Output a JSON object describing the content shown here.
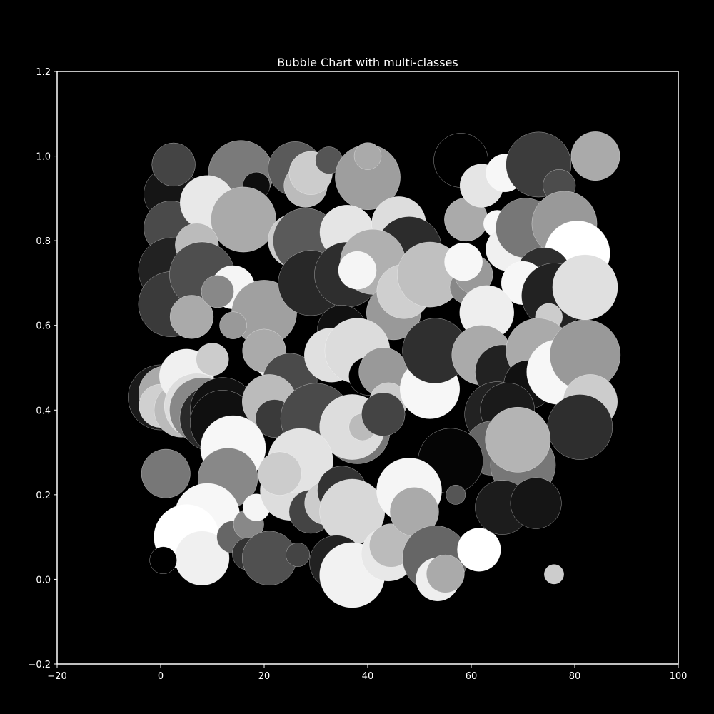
{
  "colors": {
    "background": "#000000",
    "axes_frame": "#ffffff",
    "text": "#ffffff",
    "bubble_edge": "#ffffff"
  },
  "chart_data": {
    "type": "scatter",
    "subtype": "bubble",
    "title": "Bubble Chart with multi-classes",
    "xlabel": "",
    "ylabel": "",
    "xlim": [
      -20,
      100
    ],
    "ylim": [
      -0.2,
      1.2
    ],
    "xticks": [
      -20,
      0,
      20,
      40,
      60,
      80,
      100
    ],
    "yticks": [
      -0.2,
      0.0,
      0.2,
      0.4,
      0.6,
      0.8,
      1.0,
      1.2
    ],
    "xtick_labels": [
      "−20",
      "0",
      "20",
      "40",
      "60",
      "80",
      "100"
    ],
    "ytick_labels": [
      "−0.2",
      "0.0",
      "0.2",
      "0.4",
      "0.6",
      "0.8",
      "1.0",
      "1.2"
    ],
    "grid": false,
    "legend": "none",
    "size_unit": "relative size",
    "points": [
      {
        "x": 2,
        "y": 0.91,
        "size": 5,
        "color": "#151515"
      },
      {
        "x": 2,
        "y": 0.83,
        "size": 5,
        "color": "#4a4a4a"
      },
      {
        "x": 2,
        "y": 0.73,
        "size": 6,
        "color": "#222222"
      },
      {
        "x": 2,
        "y": 0.65,
        "size": 6,
        "color": "#3a3a3a"
      },
      {
        "x": 0,
        "y": 0.43,
        "size": 6,
        "color": "#1a1a1a"
      },
      {
        "x": 1,
        "y": 0.44,
        "size": 5,
        "color": "#aaaaaa"
      },
      {
        "x": 0,
        "y": 0.41,
        "size": 4,
        "color": "#d0d0d0"
      },
      {
        "x": 4,
        "y": 0.4,
        "size": 5,
        "color": "#bbbbbb"
      },
      {
        "x": 5,
        "y": 0.48,
        "size": 5,
        "color": "#f0f0f0"
      },
      {
        "x": 7,
        "y": 0.41,
        "size": 6,
        "color": "#dddddd"
      },
      {
        "x": 8,
        "y": 0.4,
        "size": 6,
        "color": "#888888"
      },
      {
        "x": 10,
        "y": 0.38,
        "size": 6,
        "color": "#2a2a2a"
      },
      {
        "x": 12,
        "y": 0.4,
        "size": 6,
        "color": "#111111"
      },
      {
        "x": 12,
        "y": 0.37,
        "size": 6,
        "color": "#101010"
      },
      {
        "x": 2.5,
        "y": 0.98,
        "size": 4,
        "color": "#444444"
      },
      {
        "x": 15.5,
        "y": 0.96,
        "size": 6,
        "color": "#7a7a7a"
      },
      {
        "x": 26,
        "y": 0.97,
        "size": 5,
        "color": "#5a5a5a"
      },
      {
        "x": 28,
        "y": 0.93,
        "size": 4,
        "color": "#bbbbbb"
      },
      {
        "x": 29,
        "y": 0.96,
        "size": 4,
        "color": "#cccccc"
      },
      {
        "x": 32.5,
        "y": 0.99,
        "size": 2.5,
        "color": "#555555"
      },
      {
        "x": 40,
        "y": 0.95,
        "size": 6,
        "color": "#9e9e9e"
      },
      {
        "x": 40,
        "y": 1.0,
        "size": 2.5,
        "color": "#aaaaaa"
      },
      {
        "x": 18.5,
        "y": 0.93,
        "size": 2.5,
        "color": "#0e0e0e"
      },
      {
        "x": 9,
        "y": 0.89,
        "size": 5,
        "color": "#e8e8e8"
      },
      {
        "x": 16,
        "y": 0.85,
        "size": 6,
        "color": "#aaaaaa"
      },
      {
        "x": 7,
        "y": 0.79,
        "size": 4,
        "color": "#bbbbbb"
      },
      {
        "x": 8,
        "y": 0.72,
        "size": 6,
        "color": "#4e4e4e"
      },
      {
        "x": 6,
        "y": 0.62,
        "size": 4,
        "color": "#aaaaaa"
      },
      {
        "x": 14,
        "y": 0.69,
        "size": 4,
        "color": "#f5f5f5"
      },
      {
        "x": 11,
        "y": 0.68,
        "size": 3,
        "color": "#888888"
      },
      {
        "x": 20,
        "y": 0.63,
        "size": 6,
        "color": "#a0a0a0"
      },
      {
        "x": 14,
        "y": 0.6,
        "size": 2.5,
        "color": "#999999"
      },
      {
        "x": 10,
        "y": 0.52,
        "size": 3,
        "color": "#cccccc"
      },
      {
        "x": 21,
        "y": 0.51,
        "size": 2.5,
        "color": "#f0f0f0"
      },
      {
        "x": 20,
        "y": 0.54,
        "size": 4,
        "color": "#aaaaaa"
      },
      {
        "x": 25,
        "y": 0.47,
        "size": 5,
        "color": "#4a4a4a"
      },
      {
        "x": 21,
        "y": 0.42,
        "size": 5,
        "color": "#bbbbbb"
      },
      {
        "x": 22,
        "y": 0.38,
        "size": 3.5,
        "color": "#3a3a3a"
      },
      {
        "x": 26,
        "y": 0.8,
        "size": 5,
        "color": "#cccccc"
      },
      {
        "x": 28,
        "y": 0.8,
        "size": 6,
        "color": "#5a5a5a"
      },
      {
        "x": 29,
        "y": 0.7,
        "size": 6,
        "color": "#282828"
      },
      {
        "x": 36,
        "y": 0.82,
        "size": 5,
        "color": "#e5e5e5"
      },
      {
        "x": 46,
        "y": 0.84,
        "size": 5,
        "color": "#dddddd"
      },
      {
        "x": 48,
        "y": 0.78,
        "size": 6,
        "color": "#2c2c2c"
      },
      {
        "x": 36,
        "y": 0.72,
        "size": 6,
        "color": "#2e2e2e"
      },
      {
        "x": 41,
        "y": 0.75,
        "size": 6,
        "color": "#b0b0b0"
      },
      {
        "x": 38,
        "y": 0.73,
        "size": 3.5,
        "color": "#f5f5f5"
      },
      {
        "x": 45,
        "y": 0.63,
        "size": 5,
        "color": "#999999"
      },
      {
        "x": 47,
        "y": 0.68,
        "size": 5,
        "color": "#cfcfcf"
      },
      {
        "x": 52,
        "y": 0.72,
        "size": 6,
        "color": "#c0c0c0"
      },
      {
        "x": 59,
        "y": 0.85,
        "size": 4,
        "color": "#aaaaaa"
      },
      {
        "x": 58,
        "y": 0.99,
        "size": 5,
        "color": "#000000"
      },
      {
        "x": 62,
        "y": 0.93,
        "size": 4,
        "color": "#e5e5e5"
      },
      {
        "x": 66.5,
        "y": 0.96,
        "size": 3.5,
        "color": "#f7f7f7"
      },
      {
        "x": 73,
        "y": 0.98,
        "size": 6,
        "color": "#3c3c3c"
      },
      {
        "x": 77,
        "y": 0.93,
        "size": 3,
        "color": "#4c4c4c"
      },
      {
        "x": 84,
        "y": 1.0,
        "size": 4.5,
        "color": "#aaaaaa"
      },
      {
        "x": 65,
        "y": 0.84,
        "size": 2.5,
        "color": "#f7f7f7"
      },
      {
        "x": 67,
        "y": 0.78,
        "size": 4,
        "color": "#f0f0f0"
      },
      {
        "x": 70.5,
        "y": 0.83,
        "size": 5.5,
        "color": "#777777"
      },
      {
        "x": 78,
        "y": 0.84,
        "size": 6,
        "color": "#999999"
      },
      {
        "x": 80.5,
        "y": 0.77,
        "size": 6,
        "color": "#ffffff"
      },
      {
        "x": 74,
        "y": 0.72,
        "size": 5,
        "color": "#2e2e2e"
      },
      {
        "x": 70,
        "y": 0.7,
        "size": 4,
        "color": "#f7f7f7"
      },
      {
        "x": 76,
        "y": 0.67,
        "size": 6,
        "color": "#222222"
      },
      {
        "x": 82,
        "y": 0.69,
        "size": 6,
        "color": "#e0e0e0"
      },
      {
        "x": 59,
        "y": 0.69,
        "size": 3,
        "color": "#888888"
      },
      {
        "x": 60.5,
        "y": 0.72,
        "size": 3.5,
        "color": "#999999"
      },
      {
        "x": 58.5,
        "y": 0.75,
        "size": 3.5,
        "color": "#f7f7f7"
      },
      {
        "x": 63,
        "y": 0.63,
        "size": 5,
        "color": "#eeeeee"
      },
      {
        "x": 75,
        "y": 0.62,
        "size": 2.5,
        "color": "#cccccc"
      },
      {
        "x": 35,
        "y": 0.59,
        "size": 4.5,
        "color": "#111111"
      },
      {
        "x": 33,
        "y": 0.53,
        "size": 5,
        "color": "#e0e0e0"
      },
      {
        "x": 38,
        "y": 0.54,
        "size": 6,
        "color": "#dcdcdc"
      },
      {
        "x": 40,
        "y": 0.48,
        "size": 3.5,
        "color": "#000000"
      },
      {
        "x": 43,
        "y": 0.49,
        "size": 4.5,
        "color": "#999999"
      },
      {
        "x": 44,
        "y": 0.42,
        "size": 3.5,
        "color": "#cccccc"
      },
      {
        "x": 52,
        "y": 0.45,
        "size": 5.5,
        "color": "#f7f7f7"
      },
      {
        "x": 53,
        "y": 0.54,
        "size": 6,
        "color": "#2f2f2f"
      },
      {
        "x": 62,
        "y": 0.53,
        "size": 5.5,
        "color": "#aaaaaa"
      },
      {
        "x": 66,
        "y": 0.49,
        "size": 5,
        "color": "#222222"
      },
      {
        "x": 73,
        "y": 0.54,
        "size": 6,
        "color": "#aaaaaa"
      },
      {
        "x": 71,
        "y": 0.46,
        "size": 4.5,
        "color": "#111111"
      },
      {
        "x": 77,
        "y": 0.49,
        "size": 6,
        "color": "#f7f7f7"
      },
      {
        "x": 82,
        "y": 0.53,
        "size": 6.5,
        "color": "#999999"
      },
      {
        "x": 83,
        "y": 0.42,
        "size": 5,
        "color": "#cccccc"
      },
      {
        "x": 81,
        "y": 0.36,
        "size": 6,
        "color": "#2e2e2e"
      },
      {
        "x": 65,
        "y": 0.39,
        "size": 6,
        "color": "#222222"
      },
      {
        "x": 67,
        "y": 0.4,
        "size": 5,
        "color": "#1a1a1a"
      },
      {
        "x": 64,
        "y": 0.31,
        "size": 5,
        "color": "#666666"
      },
      {
        "x": 70,
        "y": 0.27,
        "size": 6,
        "color": "#777777"
      },
      {
        "x": 69,
        "y": 0.33,
        "size": 6,
        "color": "#b4b4b4"
      },
      {
        "x": 56,
        "y": 0.28,
        "size": 6,
        "color": "#050505"
      },
      {
        "x": 30,
        "y": 0.38,
        "size": 6.5,
        "color": "#4a4a4a"
      },
      {
        "x": 38,
        "y": 0.35,
        "size": 6,
        "color": "#777777"
      },
      {
        "x": 37,
        "y": 0.36,
        "size": 6,
        "color": "#dddddd"
      },
      {
        "x": 39,
        "y": 0.36,
        "size": 2.5,
        "color": "#bbbbbb"
      },
      {
        "x": 43,
        "y": 0.39,
        "size": 4,
        "color": "#444444"
      },
      {
        "x": 14,
        "y": 0.31,
        "size": 6,
        "color": "#f7f7f7"
      },
      {
        "x": 13,
        "y": 0.24,
        "size": 5.5,
        "color": "#888888"
      },
      {
        "x": 1,
        "y": 0.25,
        "size": 4.5,
        "color": "#777777"
      },
      {
        "x": 9,
        "y": 0.15,
        "size": 6,
        "color": "#f7f7f7"
      },
      {
        "x": 5,
        "y": 0.1,
        "size": 6,
        "color": "#ffffff"
      },
      {
        "x": 8,
        "y": 0.05,
        "size": 5,
        "color": "#f0f0f0"
      },
      {
        "x": 0.5,
        "y": 0.045,
        "size": 2.5,
        "color": "#000000"
      },
      {
        "x": 14,
        "y": 0.1,
        "size": 3,
        "color": "#666666"
      },
      {
        "x": 17,
        "y": 0.13,
        "size": 2.8,
        "color": "#888888"
      },
      {
        "x": 18.5,
        "y": 0.17,
        "size": 2.5,
        "color": "#f5f5f5"
      },
      {
        "x": 17,
        "y": 0.06,
        "size": 3,
        "color": "#333333"
      },
      {
        "x": 21,
        "y": 0.05,
        "size": 5,
        "color": "#505050"
      },
      {
        "x": 26.5,
        "y": 0.058,
        "size": 2.2,
        "color": "#444444"
      },
      {
        "x": 25,
        "y": 0.21,
        "size": 5.5,
        "color": "#dddddd"
      },
      {
        "x": 27,
        "y": 0.28,
        "size": 6,
        "color": "#e3e3e3"
      },
      {
        "x": 23,
        "y": 0.25,
        "size": 4,
        "color": "#cccccc"
      },
      {
        "x": 29,
        "y": 0.16,
        "size": 4,
        "color": "#444444"
      },
      {
        "x": 32,
        "y": 0.18,
        "size": 4,
        "color": "#cccccc"
      },
      {
        "x": 35,
        "y": 0.21,
        "size": 4.5,
        "color": "#333333"
      },
      {
        "x": 37,
        "y": 0.16,
        "size": 6,
        "color": "#d8d8d8"
      },
      {
        "x": 34,
        "y": 0.04,
        "size": 5,
        "color": "#222222"
      },
      {
        "x": 37,
        "y": 0.01,
        "size": 6,
        "color": "#f2f2f2"
      },
      {
        "x": 44,
        "y": 0.06,
        "size": 5,
        "color": "#e8e8e8"
      },
      {
        "x": 44.5,
        "y": 0.08,
        "size": 4,
        "color": "#bbbbbb"
      },
      {
        "x": 48,
        "y": 0.21,
        "size": 6,
        "color": "#f5f5f5"
      },
      {
        "x": 49,
        "y": 0.16,
        "size": 4.5,
        "color": "#aaaaaa"
      },
      {
        "x": 53,
        "y": 0.05,
        "size": 6,
        "color": "#666666"
      },
      {
        "x": 53.5,
        "y": 0.0,
        "size": 4,
        "color": "#eeeeee"
      },
      {
        "x": 55,
        "y": 0.013,
        "size": 3.5,
        "color": "#aaaaaa"
      },
      {
        "x": 57,
        "y": 0.2,
        "size": 1.8,
        "color": "#555555"
      },
      {
        "x": 61.5,
        "y": 0.07,
        "size": 4,
        "color": "#ffffff"
      },
      {
        "x": 66,
        "y": 0.17,
        "size": 5,
        "color": "#1c1c1c"
      },
      {
        "x": 72.5,
        "y": 0.18,
        "size": 4.7,
        "color": "#151515"
      },
      {
        "x": 76,
        "y": 0.012,
        "size": 1.8,
        "color": "#cccccc"
      }
    ]
  }
}
